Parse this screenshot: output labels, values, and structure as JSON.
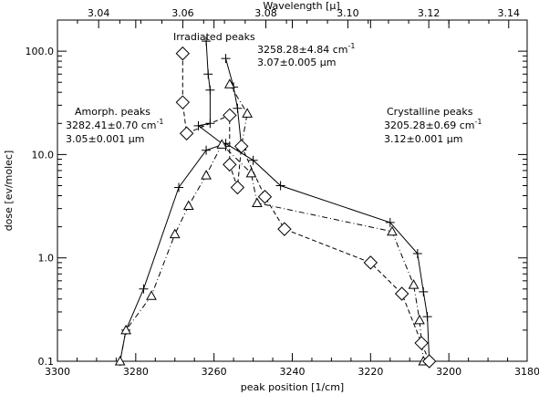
{
  "chart_data": {
    "type": "scatter",
    "xlabel": "peak position [1/cm]",
    "ylabel": "dose [ev/molec]",
    "top_xlabel": "Wavelength [μ]",
    "xlim": [
      3300,
      3180
    ],
    "ylim": [
      0.1,
      200
    ],
    "yscale": "log",
    "grid": false,
    "x_ticks": [
      "3300",
      "3280",
      "3260",
      "3240",
      "3220",
      "3200",
      "3180"
    ],
    "x_tick_values": [
      3300,
      3280,
      3260,
      3240,
      3220,
      3200,
      3180
    ],
    "y_ticks": [
      "0.1",
      "1.0",
      "10.0",
      "100.0"
    ],
    "y_tick_values": [
      0.1,
      1,
      10,
      100
    ],
    "top_ticks": [
      "3.04",
      "3.06",
      "3.08",
      "3.10",
      "3.12",
      "3.14"
    ],
    "top_tick_values": [
      3.04,
      3.06,
      3.08,
      3.1,
      3.12,
      3.14
    ],
    "annotations": {
      "irradiated_title": "Irradiated peaks",
      "irradiated_line1": "3258.28±4.84 cm",
      "irradiated_line2": "3.07±0.005 μm",
      "amorph_title": "Amorph. peaks",
      "amorph_line1": "3282.41±0.70 cm",
      "amorph_line2": "3.05±0.001 μm",
      "cryst_title": "Crystalline peaks",
      "cryst_line1": "3205.28±0.69 cm",
      "cryst_line2": "3.12±0.001 μm",
      "unit_exp": "-1"
    },
    "series": [
      {
        "marker": "plus",
        "line": "solid",
        "points": [
          [
            3284,
            0.1
          ],
          [
            3282.5,
            0.2
          ],
          [
            3278,
            0.5
          ],
          [
            3269,
            4.8
          ],
          [
            3262,
            11.0
          ],
          [
            3257,
            12.8
          ],
          [
            3250,
            8.8
          ],
          [
            3243,
            5.0
          ],
          [
            3215,
            2.2
          ],
          [
            3208,
            1.1
          ],
          [
            3206.5,
            0.47
          ],
          [
            3205.5,
            0.27
          ],
          [
            3205,
            0.1
          ]
        ]
      },
      {
        "marker": "plus",
        "line": "solid",
        "points": [
          [
            3262,
            125
          ],
          [
            3261.5,
            60
          ],
          [
            3261,
            42
          ],
          [
            3261,
            20
          ],
          [
            3264,
            19
          ],
          [
            3257,
            12
          ]
        ]
      },
      {
        "marker": "plus",
        "line": "solid",
        "points": [
          [
            3257,
            85
          ],
          [
            3255,
            45
          ],
          [
            3254,
            28
          ],
          [
            3253,
            12
          ]
        ]
      },
      {
        "marker": "triangle",
        "line": "dashdot",
        "points": [
          [
            3284,
            0.1
          ],
          [
            3282.5,
            0.2
          ],
          [
            3276,
            0.43
          ],
          [
            3270,
            1.7
          ],
          [
            3266.5,
            3.2
          ],
          [
            3262,
            6.3
          ],
          [
            3258,
            12.5
          ],
          [
            3250.5,
            6.6
          ],
          [
            3249,
            3.4
          ],
          [
            3214.5,
            1.8
          ],
          [
            3209,
            0.55
          ],
          [
            3207.5,
            0.25
          ],
          [
            3206.5,
            0.1
          ]
        ]
      },
      {
        "marker": "triangle",
        "line": "dashdot",
        "points": [
          [
            3256,
            48
          ],
          [
            3251.5,
            25
          ],
          [
            3253,
            12
          ]
        ]
      },
      {
        "marker": "diamond",
        "line": "dashed",
        "points": [
          [
            3268,
            95
          ],
          [
            3268,
            32
          ],
          [
            3267,
            16
          ],
          [
            3256,
            24
          ],
          [
            3256,
            8
          ],
          [
            3254,
            4.8
          ],
          [
            3253,
            12
          ],
          [
            3247,
            3.9
          ],
          [
            3242,
            1.9
          ],
          [
            3220,
            0.9
          ],
          [
            3212,
            0.45
          ],
          [
            3207,
            0.15
          ],
          [
            3205,
            0.1
          ]
        ]
      }
    ]
  }
}
